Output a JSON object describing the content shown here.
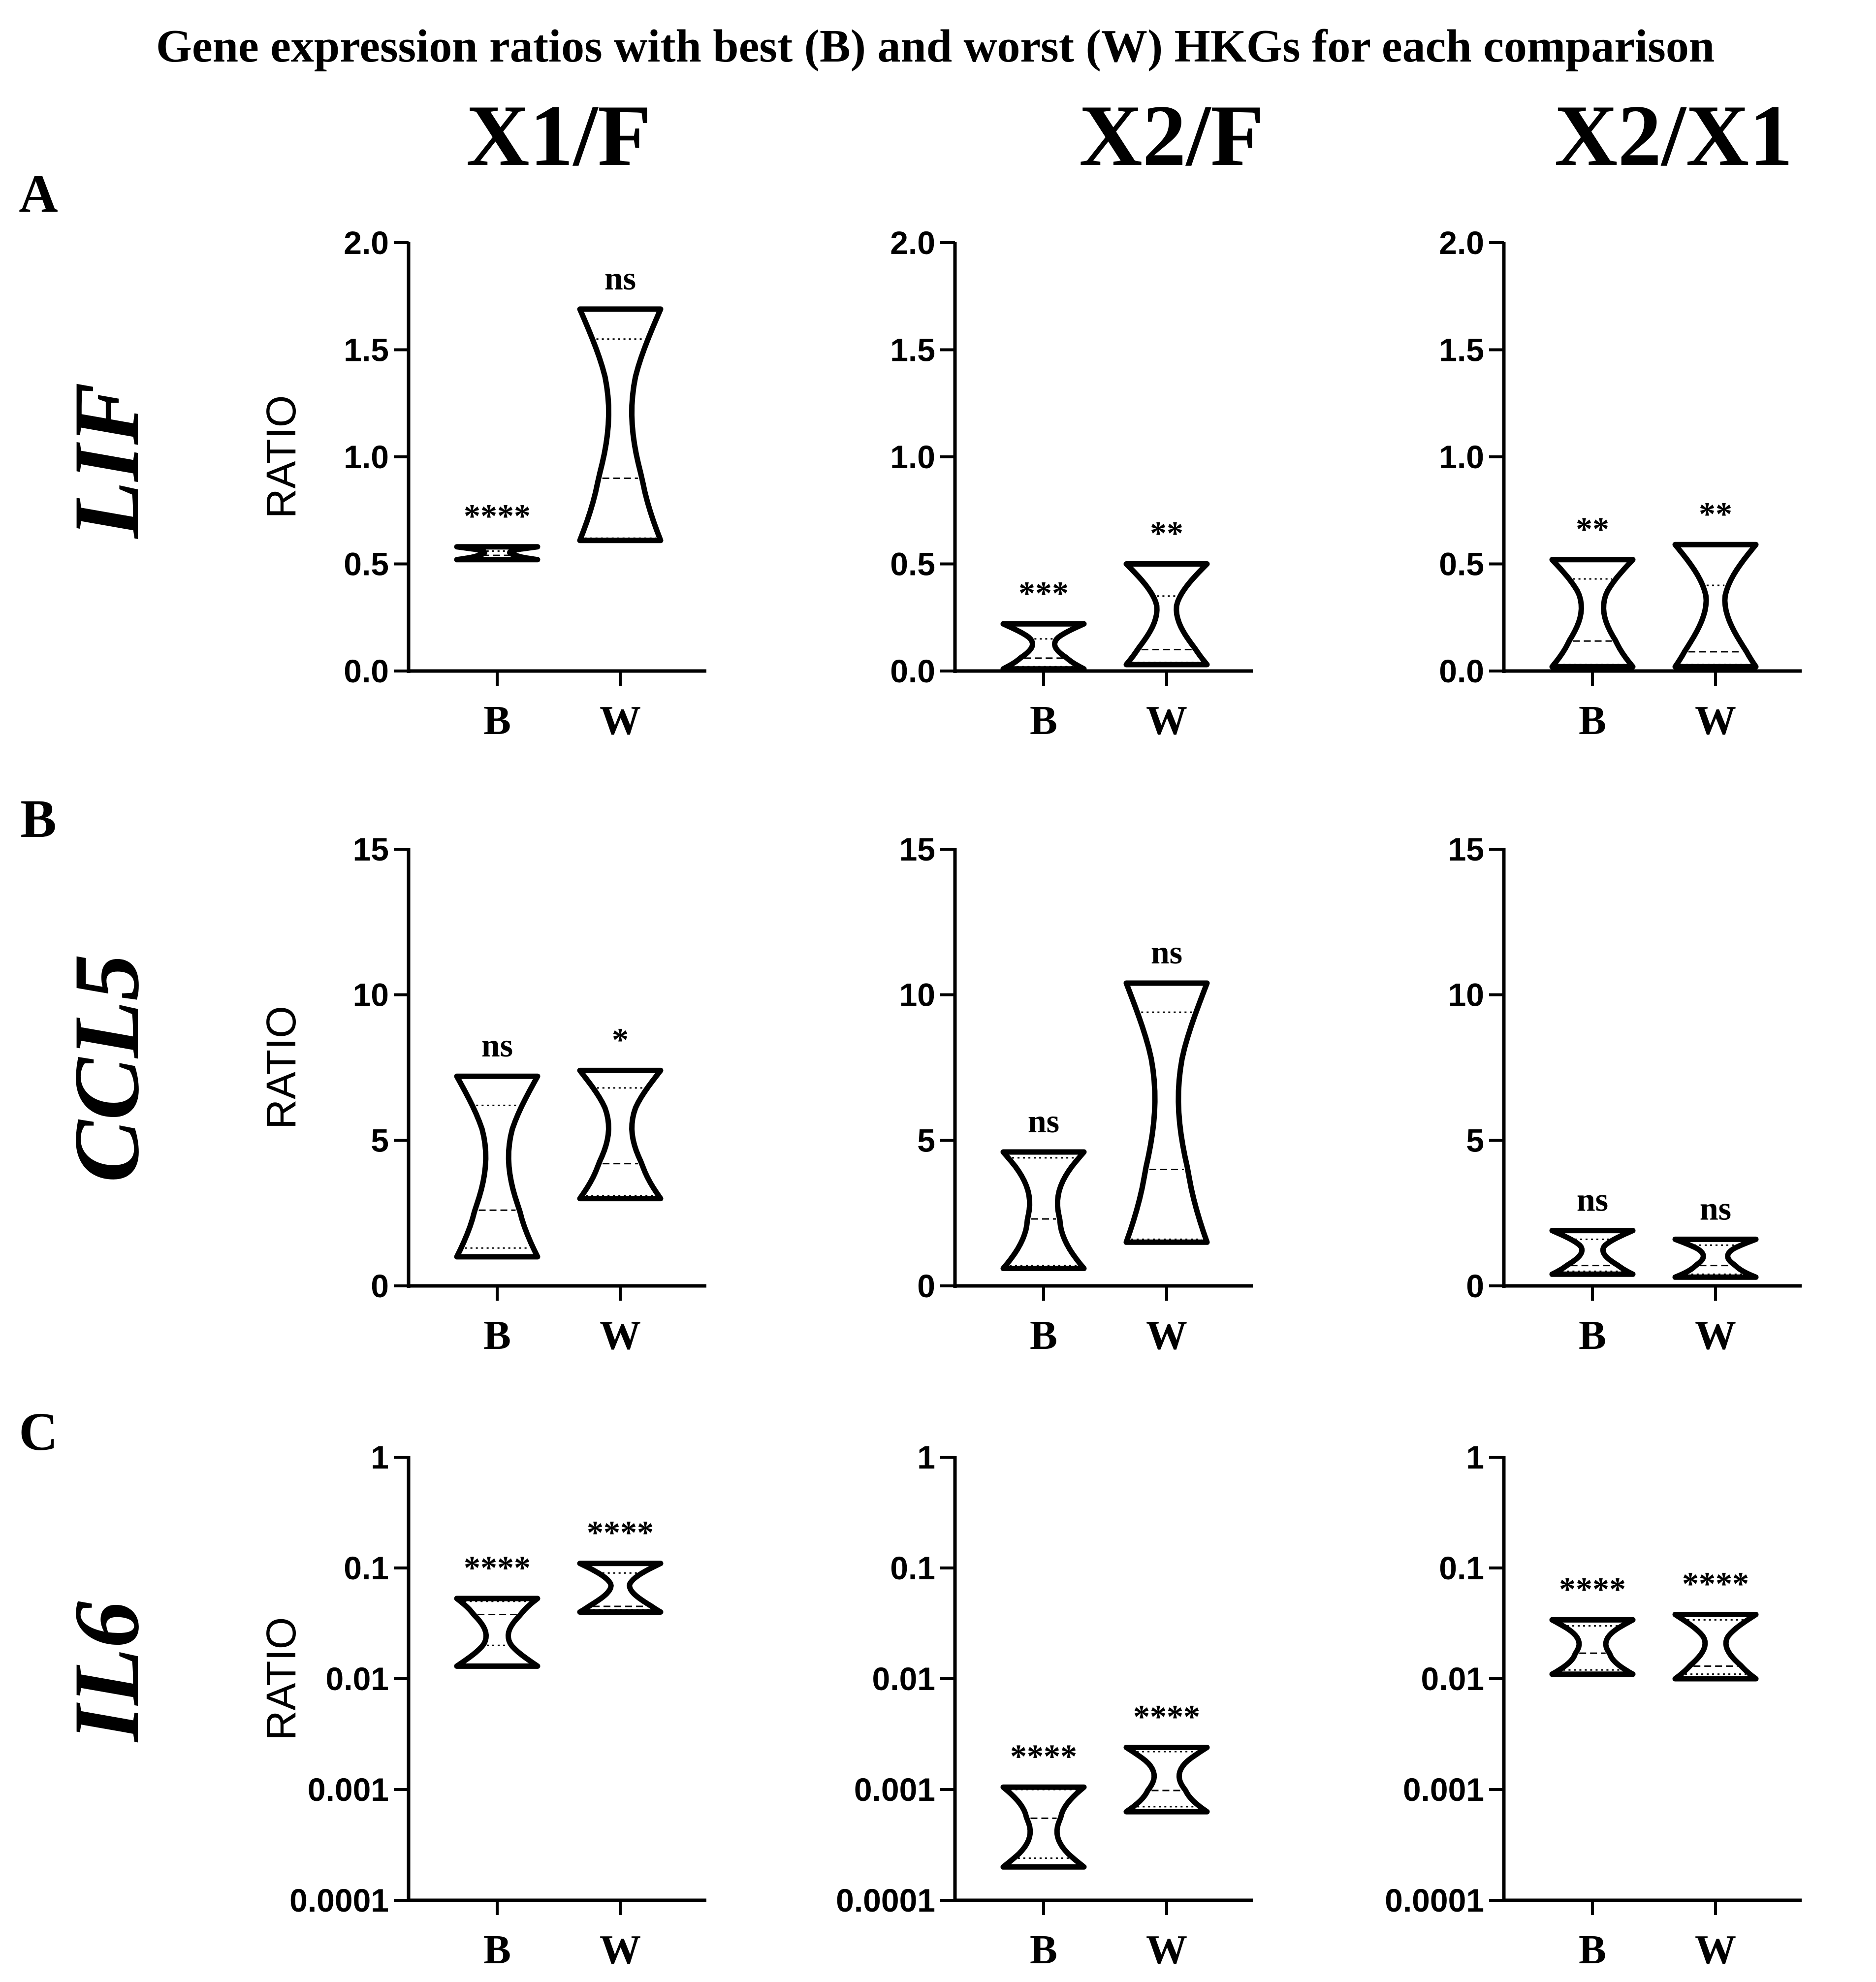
{
  "title": "Gene expression ratios with best (B) and worst (W) HKGs for each comparison",
  "columns": [
    "X1/F",
    "X2/F",
    "X2/X1"
  ],
  "rows": [
    {
      "letter": "A",
      "gene": "LIF"
    },
    {
      "letter": "B",
      "gene": "CCL5"
    },
    {
      "letter": "C",
      "gene": "IL6"
    }
  ],
  "colors": {
    "stroke": "#000000",
    "background": "#ffffff"
  },
  "chart_data": [
    {
      "type": "violin",
      "row": "LIF",
      "comparison": "X1/F",
      "ylabel": "RATIO",
      "scale": "linear",
      "ylim": [
        0,
        2
      ],
      "yticks": [
        "0.0",
        "0.5",
        "1.0",
        "1.5",
        "2.0"
      ],
      "ytick_values": [
        0,
        0.5,
        1,
        1.5,
        2
      ],
      "categories": [
        "B",
        "W"
      ],
      "series": [
        {
          "name": "B",
          "min": 0.52,
          "max": 0.58,
          "median": 0.54,
          "q1": 0.53,
          "q3": 0.56,
          "sig": "****"
        },
        {
          "name": "W",
          "min": 0.61,
          "max": 1.69,
          "median": 0.9,
          "q1": 0.62,
          "q3": 1.55,
          "sig": "ns"
        }
      ]
    },
    {
      "type": "violin",
      "row": "LIF",
      "comparison": "X2/F",
      "ylabel": "",
      "scale": "linear",
      "ylim": [
        0,
        2
      ],
      "yticks": [
        "0.0",
        "0.5",
        "1.0",
        "1.5",
        "2.0"
      ],
      "ytick_values": [
        0,
        0.5,
        1,
        1.5,
        2
      ],
      "categories": [
        "B",
        "W"
      ],
      "series": [
        {
          "name": "B",
          "min": 0.01,
          "max": 0.22,
          "median": 0.06,
          "q1": 0.02,
          "q3": 0.15,
          "sig": "***"
        },
        {
          "name": "W",
          "min": 0.03,
          "max": 0.5,
          "median": 0.1,
          "q1": 0.04,
          "q3": 0.35,
          "sig": "**"
        }
      ]
    },
    {
      "type": "violin",
      "row": "LIF",
      "comparison": "X2/X1",
      "ylabel": "",
      "scale": "linear",
      "ylim": [
        0,
        2
      ],
      "yticks": [
        "0.0",
        "0.5",
        "1.0",
        "1.5",
        "2.0"
      ],
      "ytick_values": [
        0,
        0.5,
        1,
        1.5,
        2
      ],
      "categories": [
        "B",
        "W"
      ],
      "series": [
        {
          "name": "B",
          "min": 0.02,
          "max": 0.52,
          "median": 0.14,
          "q1": 0.03,
          "q3": 0.43,
          "sig": "**"
        },
        {
          "name": "W",
          "min": 0.02,
          "max": 0.59,
          "median": 0.09,
          "q1": 0.03,
          "q3": 0.4,
          "sig": "**"
        }
      ]
    },
    {
      "type": "violin",
      "row": "CCL5",
      "comparison": "X1/F",
      "ylabel": "RATIO",
      "scale": "linear",
      "ylim": [
        0,
        15
      ],
      "yticks": [
        "0",
        "5",
        "10",
        "15"
      ],
      "ytick_values": [
        0,
        5,
        10,
        15
      ],
      "categories": [
        "B",
        "W"
      ],
      "series": [
        {
          "name": "B",
          "min": 1.0,
          "max": 7.2,
          "median": 2.6,
          "q1": 1.3,
          "q3": 6.2,
          "sig": "ns"
        },
        {
          "name": "W",
          "min": 3.0,
          "max": 7.4,
          "median": 4.2,
          "q1": 3.1,
          "q3": 6.8,
          "sig": "*"
        }
      ]
    },
    {
      "type": "violin",
      "row": "CCL5",
      "comparison": "X2/F",
      "ylabel": "",
      "scale": "linear",
      "ylim": [
        0,
        15
      ],
      "yticks": [
        "0",
        "5",
        "10",
        "15"
      ],
      "ytick_values": [
        0,
        5,
        10,
        15
      ],
      "categories": [
        "B",
        "W"
      ],
      "series": [
        {
          "name": "B",
          "min": 0.6,
          "max": 4.6,
          "median": 2.3,
          "q1": 0.7,
          "q3": 4.4,
          "sig": "ns"
        },
        {
          "name": "W",
          "min": 1.5,
          "max": 10.4,
          "median": 4.0,
          "q1": 1.6,
          "q3": 9.4,
          "sig": "ns"
        }
      ]
    },
    {
      "type": "violin",
      "row": "CCL5",
      "comparison": "X2/X1",
      "ylabel": "",
      "scale": "linear",
      "ylim": [
        0,
        15
      ],
      "yticks": [
        "0",
        "5",
        "10",
        "15"
      ],
      "ytick_values": [
        0,
        5,
        10,
        15
      ],
      "categories": [
        "B",
        "W"
      ],
      "series": [
        {
          "name": "B",
          "min": 0.4,
          "max": 1.9,
          "median": 0.7,
          "q1": 0.5,
          "q3": 1.6,
          "sig": "ns"
        },
        {
          "name": "W",
          "min": 0.3,
          "max": 1.6,
          "median": 0.7,
          "q1": 0.4,
          "q3": 1.4,
          "sig": "ns"
        }
      ]
    },
    {
      "type": "violin",
      "row": "IL6",
      "comparison": "X1/F",
      "ylabel": "RATIO",
      "scale": "log",
      "ylim": [
        0.0001,
        1
      ],
      "yticks": [
        "0.0001",
        "0.001",
        "0.01",
        "0.1",
        "1"
      ],
      "ytick_values": [
        0.0001,
        0.001,
        0.01,
        0.1,
        1
      ],
      "categories": [
        "B",
        "W"
      ],
      "series": [
        {
          "name": "B",
          "min": 0.013,
          "max": 0.053,
          "median": 0.038,
          "q1": 0.02,
          "q3": 0.05,
          "sig": "****"
        },
        {
          "name": "W",
          "min": 0.04,
          "max": 0.11,
          "median": 0.045,
          "q1": 0.042,
          "q3": 0.09,
          "sig": "****"
        }
      ]
    },
    {
      "type": "violin",
      "row": "IL6",
      "comparison": "X2/F",
      "ylabel": "",
      "scale": "log",
      "ylim": [
        0.0001,
        1
      ],
      "yticks": [
        "0.0001",
        "0.001",
        "0.01",
        "0.1",
        "1"
      ],
      "ytick_values": [
        0.0001,
        0.001,
        0.01,
        0.1,
        1
      ],
      "categories": [
        "B",
        "W"
      ],
      "series": [
        {
          "name": "B",
          "min": 0.0002,
          "max": 0.00105,
          "median": 0.00055,
          "q1": 0.00024,
          "q3": 0.001,
          "sig": "****"
        },
        {
          "name": "W",
          "min": 0.00063,
          "max": 0.0024,
          "median": 0.00098,
          "q1": 0.0007,
          "q3": 0.0022,
          "sig": "****"
        }
      ]
    },
    {
      "type": "violin",
      "row": "IL6",
      "comparison": "X2/X1",
      "ylabel": "",
      "scale": "log",
      "ylim": [
        0.0001,
        1
      ],
      "yticks": [
        "0.0001",
        "0.001",
        "0.01",
        "0.1",
        "1"
      ],
      "ytick_values": [
        0.0001,
        0.001,
        0.01,
        0.1,
        1
      ],
      "categories": [
        "B",
        "W"
      ],
      "series": [
        {
          "name": "B",
          "min": 0.011,
          "max": 0.034,
          "median": 0.017,
          "q1": 0.012,
          "q3": 0.03,
          "sig": "****"
        },
        {
          "name": "W",
          "min": 0.01,
          "max": 0.038,
          "median": 0.013,
          "q1": 0.011,
          "q3": 0.034,
          "sig": "****"
        }
      ]
    }
  ]
}
